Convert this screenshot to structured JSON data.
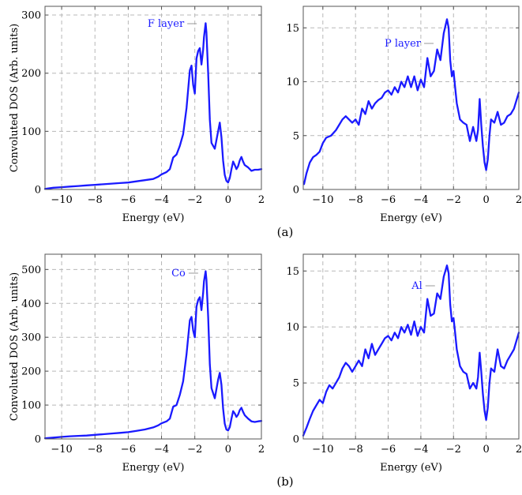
{
  "colors": {
    "series": "#1a1aff",
    "grid": "#b8b8b8",
    "frame": "#555555"
  },
  "panel_labels": [
    "(a)",
    "(b)"
  ],
  "chart_data": [
    {
      "type": "line",
      "panel": "(a)",
      "ylabel": "Convoluted DOS (Arb. units)",
      "xlabel": "Energy (eV)",
      "xlim": [
        -11,
        2
      ],
      "ylim": [
        0,
        315
      ],
      "xticks": [
        -10,
        -8,
        -6,
        -4,
        -2,
        0,
        2
      ],
      "yticks": [
        0,
        100,
        200,
        300
      ],
      "grid": true,
      "legend_position": "top-center",
      "series": [
        {
          "name": "F layer",
          "x": [
            -11,
            -10.5,
            -10,
            -9.5,
            -9,
            -8.5,
            -8,
            -7.5,
            -7,
            -6.5,
            -6,
            -5.5,
            -5,
            -4.5,
            -4.2,
            -4,
            -3.7,
            -3.5,
            -3.3,
            -3.1,
            -2.9,
            -2.7,
            -2.5,
            -2.3,
            -2.2,
            -2.1,
            -2,
            -1.9,
            -1.8,
            -1.7,
            -1.6,
            -1.5,
            -1.45,
            -1.35,
            -1.3,
            -1.2,
            -1.1,
            -1,
            -0.8,
            -0.6,
            -0.5,
            -0.4,
            -0.3,
            -0.2,
            -0.1,
            0,
            0.1,
            0.2,
            0.3,
            0.4,
            0.5,
            0.6,
            0.7,
            0.8,
            0.9,
            1,
            1.2,
            1.4,
            1.6,
            1.8,
            2
          ],
          "y": [
            1,
            3,
            4,
            5,
            6,
            7,
            8,
            9,
            10,
            11,
            12,
            14,
            16,
            18,
            22,
            26,
            30,
            35,
            55,
            60,
            75,
            95,
            140,
            205,
            213,
            180,
            165,
            225,
            238,
            243,
            215,
            240,
            262,
            286,
            270,
            200,
            120,
            80,
            70,
            100,
            115,
            90,
            50,
            25,
            15,
            12,
            20,
            35,
            48,
            42,
            35,
            40,
            50,
            56,
            48,
            42,
            38,
            32,
            34,
            34,
            35
          ]
        }
      ]
    },
    {
      "type": "line",
      "panel": "(a)",
      "ylabel": "",
      "xlabel": "Energy (eV)",
      "xlim": [
        -11.2,
        2
      ],
      "ylim": [
        0,
        17
      ],
      "xticks": [
        -10,
        -8,
        -6,
        -4,
        -2,
        0,
        2
      ],
      "yticks": [
        0,
        5,
        10,
        15
      ],
      "grid": true,
      "legend_position": "top-center",
      "series": [
        {
          "name": "P layer",
          "x": [
            -11.15,
            -11,
            -10.9,
            -10.8,
            -10.6,
            -10.4,
            -10.2,
            -10,
            -9.8,
            -9.5,
            -9.2,
            -9,
            -8.8,
            -8.6,
            -8.4,
            -8.2,
            -8,
            -7.8,
            -7.6,
            -7.4,
            -7.2,
            -7,
            -6.8,
            -6.6,
            -6.4,
            -6.2,
            -6,
            -5.8,
            -5.6,
            -5.4,
            -5.2,
            -5,
            -4.8,
            -4.6,
            -4.4,
            -4.2,
            -4,
            -3.8,
            -3.6,
            -3.4,
            -3.2,
            -3,
            -2.8,
            -2.6,
            -2.4,
            -2.3,
            -2.2,
            -2.1,
            -2,
            -1.9,
            -1.8,
            -1.6,
            -1.4,
            -1.2,
            -1,
            -0.8,
            -0.6,
            -0.5,
            -0.4,
            -0.3,
            -0.2,
            -0.1,
            0,
            0.1,
            0.2,
            0.3,
            0.5,
            0.7,
            0.9,
            1.1,
            1.3,
            1.5,
            1.7,
            1.9,
            2
          ],
          "y": [
            0.5,
            1.5,
            2,
            2.5,
            3,
            3.2,
            3.5,
            4.3,
            4.8,
            5.0,
            5.5,
            6.0,
            6.5,
            6.8,
            6.5,
            6.2,
            6.5,
            6.0,
            7.5,
            7.0,
            8.2,
            7.5,
            8.0,
            8.3,
            8.5,
            9.0,
            9.2,
            8.8,
            9.5,
            9.0,
            10.0,
            9.5,
            10.5,
            9.5,
            10.5,
            9.2,
            10.2,
            9.5,
            12.2,
            10.5,
            11.0,
            13.0,
            12.0,
            14.5,
            15.8,
            15.0,
            12.0,
            10.5,
            11.0,
            9.5,
            8.0,
            6.5,
            6.2,
            6.0,
            4.5,
            5.8,
            4.5,
            5.5,
            8.4,
            6.0,
            4.0,
            2.5,
            1.8,
            2.8,
            5.0,
            6.5,
            6.2,
            7.2,
            6.0,
            6.2,
            6.8,
            7.0,
            7.5,
            8.5,
            9.0
          ]
        }
      ]
    },
    {
      "type": "line",
      "panel": "(b)",
      "ylabel": "Convoluted DOS (Arb. units)",
      "xlabel": "Energy (eV)",
      "xlim": [
        -11,
        2
      ],
      "ylim": [
        0,
        545
      ],
      "xticks": [
        -10,
        -8,
        -6,
        -4,
        -2,
        0,
        2
      ],
      "yticks": [
        0,
        100,
        200,
        300,
        400,
        500
      ],
      "grid": true,
      "legend_position": "top-center",
      "series": [
        {
          "name": "Co",
          "x": [
            -11,
            -10.5,
            -10,
            -9.5,
            -9,
            -8.5,
            -8,
            -7.5,
            -7,
            -6.5,
            -6,
            -5.5,
            -5,
            -4.5,
            -4.2,
            -4,
            -3.7,
            -3.5,
            -3.3,
            -3.1,
            -2.9,
            -2.7,
            -2.5,
            -2.3,
            -2.2,
            -2.1,
            -2,
            -1.9,
            -1.8,
            -1.7,
            -1.6,
            -1.5,
            -1.45,
            -1.35,
            -1.3,
            -1.2,
            -1.1,
            -1,
            -0.8,
            -0.6,
            -0.5,
            -0.4,
            -0.3,
            -0.2,
            -0.1,
            0,
            0.1,
            0.2,
            0.3,
            0.4,
            0.5,
            0.6,
            0.7,
            0.8,
            0.9,
            1,
            1.2,
            1.4,
            1.6,
            1.8,
            2
          ],
          "y": [
            2,
            4,
            6,
            8,
            9,
            10,
            12,
            14,
            16,
            18,
            20,
            24,
            28,
            34,
            40,
            46,
            52,
            60,
            95,
            100,
            130,
            170,
            250,
            350,
            360,
            320,
            300,
            390,
            410,
            418,
            380,
            430,
            465,
            495,
            470,
            360,
            220,
            150,
            120,
            175,
            195,
            160,
            90,
            45,
            28,
            25,
            35,
            60,
            82,
            75,
            65,
            72,
            85,
            92,
            80,
            70,
            60,
            52,
            50,
            52,
            53
          ]
        }
      ]
    },
    {
      "type": "line",
      "panel": "(b)",
      "ylabel": "",
      "xlabel": "Energy (eV)",
      "xlim": [
        -11.2,
        2
      ],
      "ylim": [
        0,
        16.5
      ],
      "xticks": [
        -10,
        -8,
        -6,
        -4,
        -2,
        0,
        2
      ],
      "yticks": [
        0,
        5,
        10,
        15
      ],
      "grid": true,
      "legend_position": "top-center",
      "series": [
        {
          "name": "Al",
          "x": [
            -11.2,
            -11,
            -10.8,
            -10.6,
            -10.4,
            -10.2,
            -10,
            -9.8,
            -9.6,
            -9.4,
            -9.2,
            -9,
            -8.8,
            -8.6,
            -8.4,
            -8.2,
            -8,
            -7.8,
            -7.6,
            -7.4,
            -7.2,
            -7,
            -6.8,
            -6.6,
            -6.4,
            -6.2,
            -6,
            -5.8,
            -5.6,
            -5.4,
            -5.2,
            -5,
            -4.8,
            -4.6,
            -4.4,
            -4.2,
            -4,
            -3.8,
            -3.6,
            -3.4,
            -3.2,
            -3,
            -2.8,
            -2.6,
            -2.4,
            -2.3,
            -2.2,
            -2.1,
            -2,
            -1.9,
            -1.8,
            -1.6,
            -1.4,
            -1.2,
            -1,
            -0.8,
            -0.6,
            -0.5,
            -0.4,
            -0.3,
            -0.2,
            -0.1,
            0,
            0.1,
            0.2,
            0.3,
            0.5,
            0.7,
            0.9,
            1.1,
            1.3,
            1.5,
            1.7,
            1.9,
            2
          ],
          "y": [
            0.3,
            1.0,
            1.8,
            2.5,
            3.0,
            3.5,
            3.2,
            4.2,
            4.8,
            4.5,
            5.0,
            5.5,
            6.3,
            6.8,
            6.5,
            6.0,
            6.5,
            7.0,
            6.5,
            8.0,
            7.2,
            8.5,
            7.5,
            8.0,
            8.5,
            9.0,
            9.2,
            8.8,
            9.5,
            9.0,
            10.0,
            9.5,
            10.2,
            9.3,
            10.5,
            9.2,
            10.0,
            9.5,
            12.5,
            11.0,
            11.2,
            13.0,
            12.5,
            14.5,
            15.5,
            14.8,
            12.0,
            10.5,
            10.8,
            9.5,
            8.0,
            6.5,
            6.0,
            5.8,
            4.5,
            5.0,
            4.5,
            5.5,
            7.7,
            6.0,
            4.0,
            2.5,
            1.7,
            2.8,
            5.0,
            6.3,
            6.0,
            8.0,
            6.5,
            6.3,
            7.0,
            7.5,
            8.0,
            9.0,
            9.5
          ]
        }
      ]
    }
  ]
}
